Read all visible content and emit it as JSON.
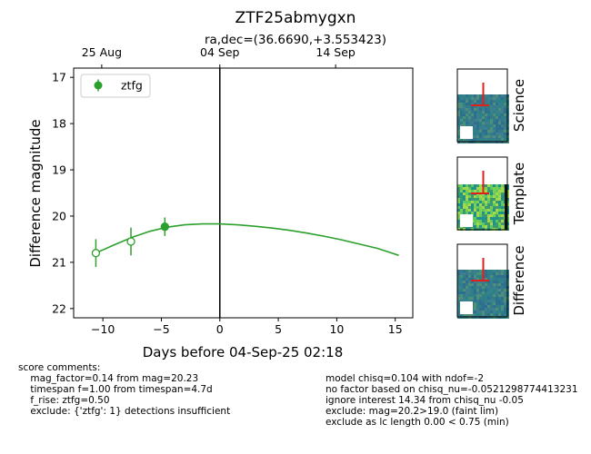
{
  "chart_data": {
    "type": "scatter",
    "title": "ZTF25abmygxn",
    "subtitle": "ra,dec=(36.6690,+3.553423)",
    "xlabel": "Days before 04-Sep-25 02:18",
    "ylabel": "Difference magnitude",
    "xlim": [
      -12.5,
      16.5
    ],
    "ylim": [
      22.2,
      16.8
    ],
    "inverted_y": true,
    "grid": false,
    "legend_position": "upper-left",
    "x_ticks": [
      -10,
      -5,
      0,
      5,
      10,
      15
    ],
    "x_tick_labels": [
      "−10",
      "−5",
      "0",
      "5",
      "10",
      "15"
    ],
    "y_ticks": [
      17,
      18,
      19,
      20,
      21,
      22
    ],
    "y_tick_labels": [
      "17",
      "18",
      "19",
      "20",
      "21",
      "22"
    ],
    "top_axis_ticks": [
      {
        "x": -10.1,
        "label": "25 Aug"
      },
      {
        "x": 0.0,
        "label": "04 Sep"
      },
      {
        "x": 9.9,
        "label": "14 Sep"
      }
    ],
    "vertical_line_x": 0,
    "series": [
      {
        "name": "ztfg",
        "color": "#2ca02c",
        "points": [
          {
            "x": -10.6,
            "y": 20.8,
            "err": 0.3,
            "filled": false
          },
          {
            "x": -7.6,
            "y": 20.55,
            "err": 0.3,
            "filled": false
          },
          {
            "x": -4.7,
            "y": 20.23,
            "err": 0.2,
            "filled": true
          }
        ],
        "fit_curve": {
          "x": [
            -10.6,
            -9.0,
            -7.5,
            -6.0,
            -4.5,
            -3.0,
            -1.5,
            0.0,
            1.5,
            3.0,
            4.5,
            6.0,
            7.5,
            9.0,
            10.5,
            12.0,
            13.5,
            15.3
          ],
          "y": [
            20.8,
            20.62,
            20.46,
            20.33,
            20.24,
            20.19,
            20.17,
            20.17,
            20.19,
            20.22,
            20.26,
            20.31,
            20.37,
            20.44,
            20.52,
            20.61,
            20.7,
            20.85
          ]
        }
      }
    ]
  },
  "cutouts": [
    {
      "label": "Science"
    },
    {
      "label": "Template"
    },
    {
      "label": "Difference"
    }
  ],
  "comments_left": [
    "score comments:",
    "    mag_factor=0.14 from mag=20.23",
    "    timespan f=1.00 from timespan=4.7d",
    "    f_rise: ztfg=0.50",
    "    exclude: {'ztfg': 1} detections insufficient"
  ],
  "comments_right": [
    "model chisq=0.104 with ndof=-2",
    "no factor based on chisq_nu=-0.0521298774413231",
    "ignore interest 14.34 from chisq_nu -0.05",
    "exclude: mag=20.2>19.0 (faint lim)",
    "exclude as lc length 0.00 < 0.75 (min)"
  ],
  "colors": {
    "series": "#2ca02c",
    "marker_red": "#e0201b"
  }
}
